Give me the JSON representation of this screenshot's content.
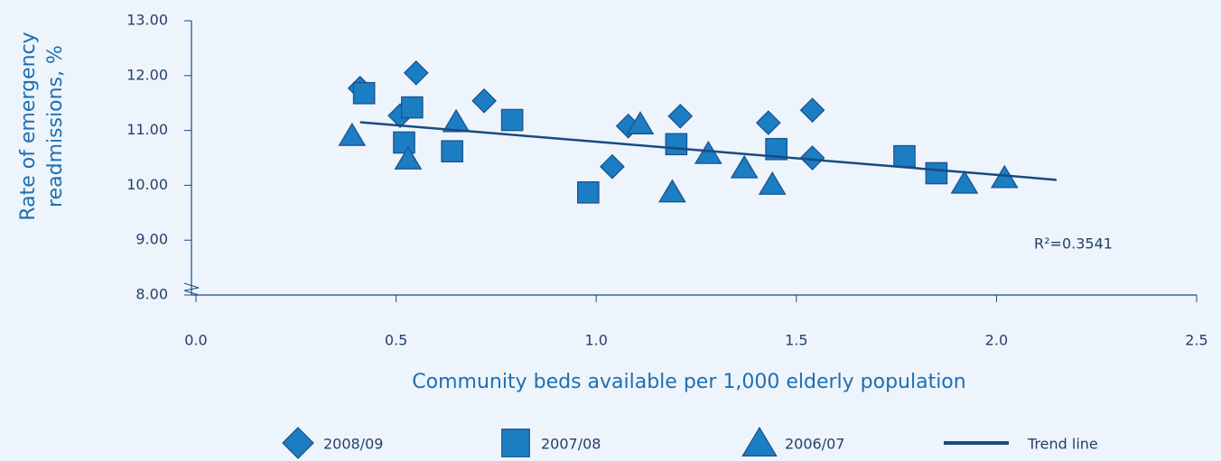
{
  "chart_data": {
    "type": "scatter",
    "ylabel": [
      "Rate of emergency",
      "readmissions, %"
    ],
    "xlabel": "Community beds available per 1,000 elderly population",
    "annotation": "R²=0.3541",
    "xlim": [
      0,
      2.5
    ],
    "xticks": [
      {
        "value": 0,
        "label": "0.0"
      },
      0.5,
      {
        "value": 1,
        "label": "1.0"
      },
      1.5,
      {
        "value": 2,
        "label": "2.0"
      },
      2.5
    ],
    "ylim": [
      8,
      13
    ],
    "yticks": [
      {
        "value": 8,
        "label": "8.00"
      },
      {
        "value": 9,
        "label": "9.00"
      },
      {
        "value": 10,
        "label": "10.00"
      },
      {
        "value": 11,
        "label": "11.00"
      },
      {
        "value": 12,
        "label": "12.00"
      },
      {
        "value": 13,
        "label": "13.00"
      }
    ],
    "grid": false,
    "series": [
      {
        "name": "2008/09",
        "marker": "diamond",
        "color": "#1b7dc2",
        "x": [
          0.41,
          0.51,
          0.55,
          0.72,
          1.04,
          1.08,
          1.21,
          1.43,
          1.54,
          1.54
        ],
        "values": [
          11.77,
          11.27,
          12.05,
          11.54,
          10.34,
          11.08,
          11.26,
          11.14,
          11.37,
          10.5
        ]
      },
      {
        "name": "2007/08",
        "marker": "square",
        "color": "#1b7dc2",
        "x": [
          0.42,
          0.54,
          0.52,
          0.64,
          0.79,
          0.98,
          1.2,
          1.45,
          1.77,
          1.85
        ],
        "values": [
          11.68,
          11.42,
          10.78,
          10.62,
          11.19,
          9.87,
          10.75,
          10.66,
          10.53,
          10.22
        ]
      },
      {
        "name": "2006/07",
        "marker": "triangle",
        "color": "#1b7dc2",
        "x": [
          0.39,
          0.53,
          0.65,
          1.11,
          1.19,
          1.28,
          1.37,
          1.44,
          1.92,
          2.02
        ],
        "values": [
          10.91,
          10.48,
          11.16,
          11.12,
          9.88,
          10.58,
          10.32,
          10.02,
          10.04,
          10.14
        ]
      },
      {
        "name": "Trend line",
        "marker": "line",
        "color": "#1a4a80",
        "x": [
          0.41,
          2.15
        ],
        "values": [
          11.15,
          10.1
        ]
      }
    ]
  }
}
